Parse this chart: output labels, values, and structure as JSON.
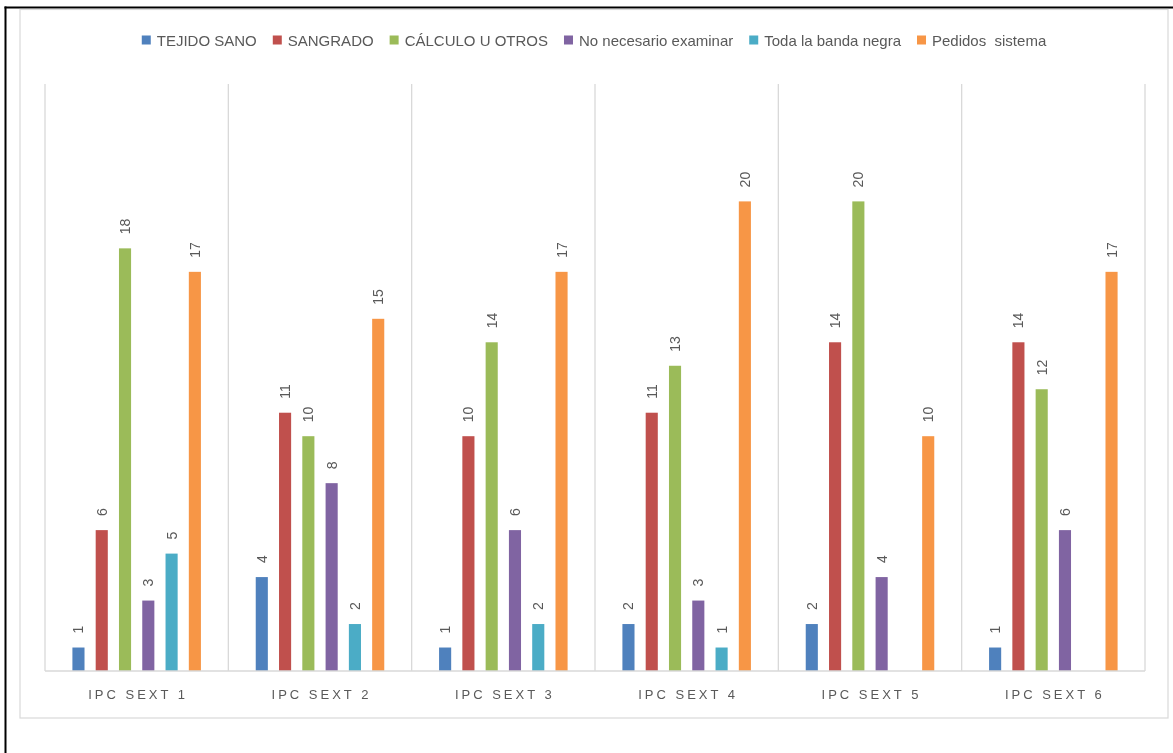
{
  "chart_data": {
    "type": "bar",
    "categories": [
      "IPC SEXT 1",
      "IPC SEXT 2",
      "IPC SEXT 3",
      "IPC SEXT 4",
      "IPC SEXT 5",
      "IPC SEXT 6"
    ],
    "series": [
      {
        "name": "TEJIDO SANO",
        "color": "#4f81bd",
        "values": [
          1,
          4,
          1,
          2,
          2,
          1
        ]
      },
      {
        "name": "SANGRADO",
        "color": "#c0504d",
        "values": [
          6,
          11,
          10,
          11,
          14,
          14
        ]
      },
      {
        "name": "CÁLCULO U OTROS",
        "color": "#9bbb59",
        "values": [
          18,
          10,
          14,
          13,
          20,
          12
        ]
      },
      {
        "name": "No necesario examinar",
        "color": "#8064a2",
        "values": [
          3,
          8,
          6,
          3,
          4,
          6
        ]
      },
      {
        "name": "Toda la banda negra",
        "color": "#4bacc6",
        "values": [
          5,
          2,
          2,
          1,
          null,
          null
        ]
      },
      {
        "name": "Pedidos  sistema",
        "color": "#f79646",
        "values": [
          17,
          15,
          17,
          20,
          10,
          17
        ]
      }
    ],
    "ylim": [
      0,
      25
    ],
    "tick_labels": "x",
    "grid": "x",
    "legend": "top",
    "data_labels": true
  }
}
